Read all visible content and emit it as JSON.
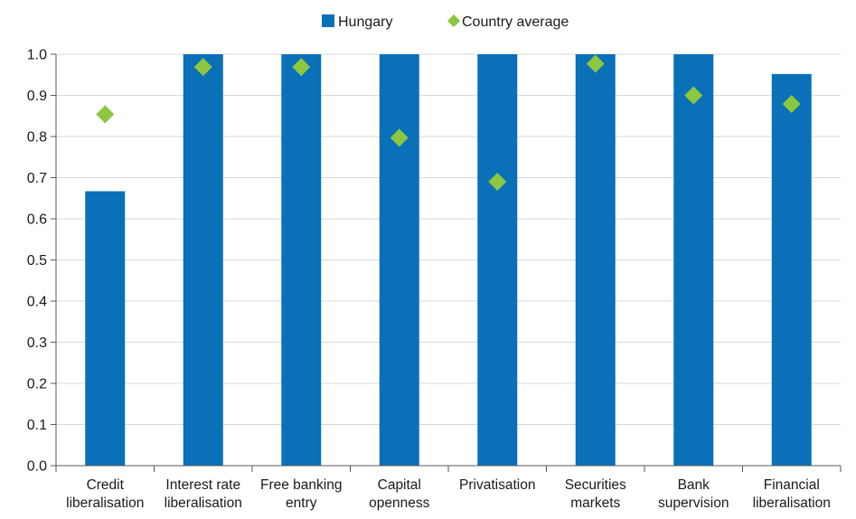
{
  "chart_data": {
    "type": "bar",
    "title": "",
    "xlabel": "",
    "ylabel": "",
    "ylim": [
      0,
      1.0
    ],
    "yticks": [
      "0.0",
      "0.1",
      "0.2",
      "0.3",
      "0.4",
      "0.5",
      "0.6",
      "0.7",
      "0.8",
      "0.9",
      "1.0"
    ],
    "grid": true,
    "legend_position": "top-center",
    "categories": [
      [
        "Credit",
        "liberalisation"
      ],
      [
        "Interest rate",
        "liberalisation"
      ],
      [
        "Free banking",
        "entry"
      ],
      [
        "Capital",
        "openness"
      ],
      [
        "Privatisation"
      ],
      [
        "Securities",
        "markets"
      ],
      [
        "Bank",
        "supervision"
      ],
      [
        "Financial",
        "liberalisation"
      ]
    ],
    "series": [
      {
        "name": "Hungary",
        "type": "bar",
        "color": "#0a70b8",
        "values": [
          0.667,
          1.0,
          1.0,
          1.0,
          1.0,
          1.0,
          1.0,
          0.952
        ]
      },
      {
        "name": "Country average",
        "type": "scatter",
        "marker": "diamond",
        "color": "#8dc63f",
        "values": [
          0.854,
          0.969,
          0.969,
          0.797,
          0.69,
          0.977,
          0.9,
          0.879
        ]
      }
    ]
  }
}
